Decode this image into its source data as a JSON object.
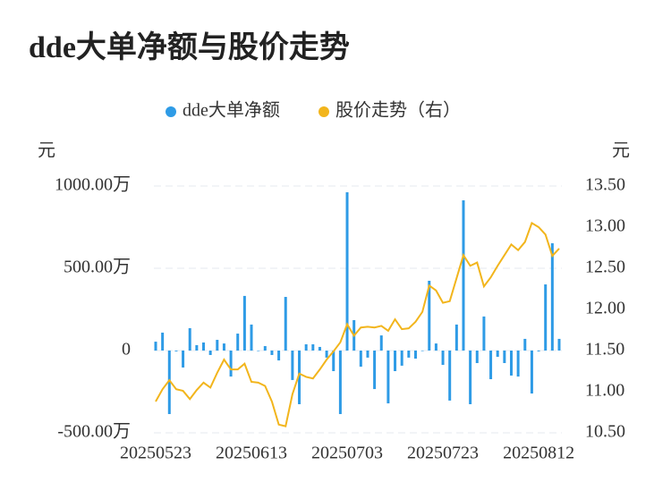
{
  "chart_data": {
    "type": "bar",
    "title": "dde大单净额与股价走势",
    "y_axis_label": "元",
    "y2_axis_label": "元",
    "categories": [
      "20250523",
      null,
      null,
      null,
      null,
      null,
      null,
      null,
      null,
      null,
      null,
      null,
      null,
      null,
      "20250613",
      null,
      null,
      null,
      null,
      null,
      null,
      null,
      null,
      null,
      null,
      null,
      null,
      null,
      "20250703",
      null,
      null,
      null,
      null,
      null,
      null,
      null,
      null,
      null,
      null,
      null,
      null,
      null,
      "20250723",
      null,
      null,
      null,
      null,
      null,
      null,
      null,
      null,
      null,
      null,
      null,
      null,
      null,
      "20250812",
      null,
      null,
      null
    ],
    "series": [
      {
        "name": "dde大单净额",
        "type": "bar",
        "color": "#2e9be6",
        "values": [
          54,
          109,
          -386,
          -5,
          -103,
          136,
          33,
          49,
          -27,
          65,
          43,
          -158,
          103,
          332,
          158,
          -3,
          27,
          -27,
          -60,
          326,
          -179,
          -326,
          38,
          38,
          22,
          -43,
          -125,
          -386,
          962,
          185,
          -98,
          -43,
          -234,
          92,
          -321,
          -125,
          -92,
          -43,
          -49,
          -3,
          424,
          43,
          -87,
          -304,
          158,
          913,
          -326,
          -76,
          207,
          -174,
          -38,
          -76,
          -152,
          -158,
          71,
          -261,
          -5,
          402,
          652,
          71
        ]
      },
      {
        "name": "股价走势（右）",
        "type": "line",
        "axis": "y2",
        "color": "#f2b51c",
        "values": [
          10.88,
          11.03,
          11.14,
          11.03,
          11.01,
          10.91,
          11.02,
          11.11,
          11.05,
          11.23,
          11.39,
          11.27,
          11.27,
          11.34,
          11.12,
          11.11,
          11.07,
          10.88,
          10.6,
          10.58,
          10.97,
          11.22,
          11.18,
          11.16,
          11.27,
          11.39,
          11.49,
          11.6,
          11.82,
          11.68,
          11.78,
          11.79,
          11.78,
          11.8,
          11.74,
          11.88,
          11.76,
          11.77,
          11.85,
          11.97,
          12.29,
          12.23,
          12.08,
          12.1,
          12.38,
          12.66,
          12.53,
          12.57,
          12.28,
          12.39,
          12.53,
          12.66,
          12.79,
          12.72,
          12.82,
          13.05,
          13.0,
          12.91,
          12.65,
          12.74
        ]
      }
    ],
    "ylim": [
      -500,
      1000
    ],
    "yticks": [
      {
        "value": 1000,
        "label": "1000.00万"
      },
      {
        "value": 500,
        "label": "500.00万"
      },
      0,
      {
        "value": -500,
        "label": "-500.00万"
      }
    ],
    "y2lim": [
      10.5,
      13.5
    ],
    "y2ticks": [
      {
        "value": 13.5,
        "label": "13.50"
      },
      {
        "value": 13,
        "label": "13.00"
      },
      {
        "value": 12.5,
        "label": "12.50"
      },
      {
        "value": 12,
        "label": "12.00"
      },
      {
        "value": 11.5,
        "label": "11.50"
      },
      {
        "value": 11,
        "label": "11.00"
      },
      {
        "value": 10.5,
        "label": "10.50"
      }
    ],
    "grid": true
  }
}
